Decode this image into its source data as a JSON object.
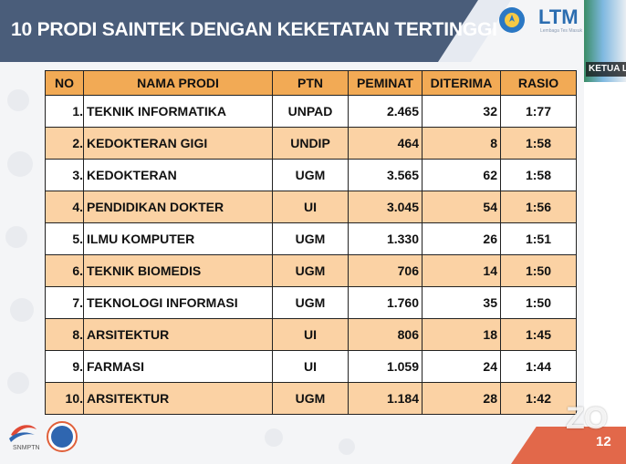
{
  "slide": {
    "title": "10 PRODI SAINTEK DENGAN KEKETATAN TERTINGGI",
    "page_number": "12"
  },
  "logos": {
    "ltm": "LTM",
    "ltm_tagline": "Lembaga Tes Masuk",
    "snmptn": "SNMPTN"
  },
  "video": {
    "participant_label": "KETUA L",
    "watermark": "ZO"
  },
  "table": {
    "headers": {
      "no": "NO",
      "nama": "NAMA PRODI",
      "ptn": "PTN",
      "peminat": "PEMINAT",
      "diterima": "DITERIMA",
      "rasio": "RASIO"
    },
    "rows": [
      {
        "no": "1.",
        "nama": "TEKNIK INFORMATIKA",
        "ptn": "UNPAD",
        "peminat": "2.465",
        "diterima": "32",
        "rasio": "1:77"
      },
      {
        "no": "2.",
        "nama": "KEDOKTERAN GIGI",
        "ptn": "UNDIP",
        "peminat": "464",
        "diterima": "8",
        "rasio": "1:58"
      },
      {
        "no": "3.",
        "nama": "KEDOKTERAN",
        "ptn": "UGM",
        "peminat": "3.565",
        "diterima": "62",
        "rasio": "1:58"
      },
      {
        "no": "4.",
        "nama": "PENDIDIKAN DOKTER",
        "ptn": "UI",
        "peminat": "3.045",
        "diterima": "54",
        "rasio": "1:56"
      },
      {
        "no": "5.",
        "nama": "ILMU KOMPUTER",
        "ptn": "UGM",
        "peminat": "1.330",
        "diterima": "26",
        "rasio": "1:51"
      },
      {
        "no": "6.",
        "nama": "TEKNIK BIOMEDIS",
        "ptn": "UGM",
        "peminat": "706",
        "diterima": "14",
        "rasio": "1:50"
      },
      {
        "no": "7.",
        "nama": "TEKNOLOGI INFORMASI",
        "ptn": "UGM",
        "peminat": "1.760",
        "diterima": "35",
        "rasio": "1:50"
      },
      {
        "no": "8.",
        "nama": "ARSITEKTUR",
        "ptn": "UI",
        "peminat": "806",
        "diterima": "18",
        "rasio": "1:45"
      },
      {
        "no": "9.",
        "nama": "FARMASI",
        "ptn": "UI",
        "peminat": "1.059",
        "diterima": "24",
        "rasio": "1:44"
      },
      {
        "no": "10.",
        "nama": "ARSITEKTUR",
        "ptn": "UGM",
        "peminat": "1.184",
        "diterima": "28",
        "rasio": "1:42"
      }
    ]
  }
}
